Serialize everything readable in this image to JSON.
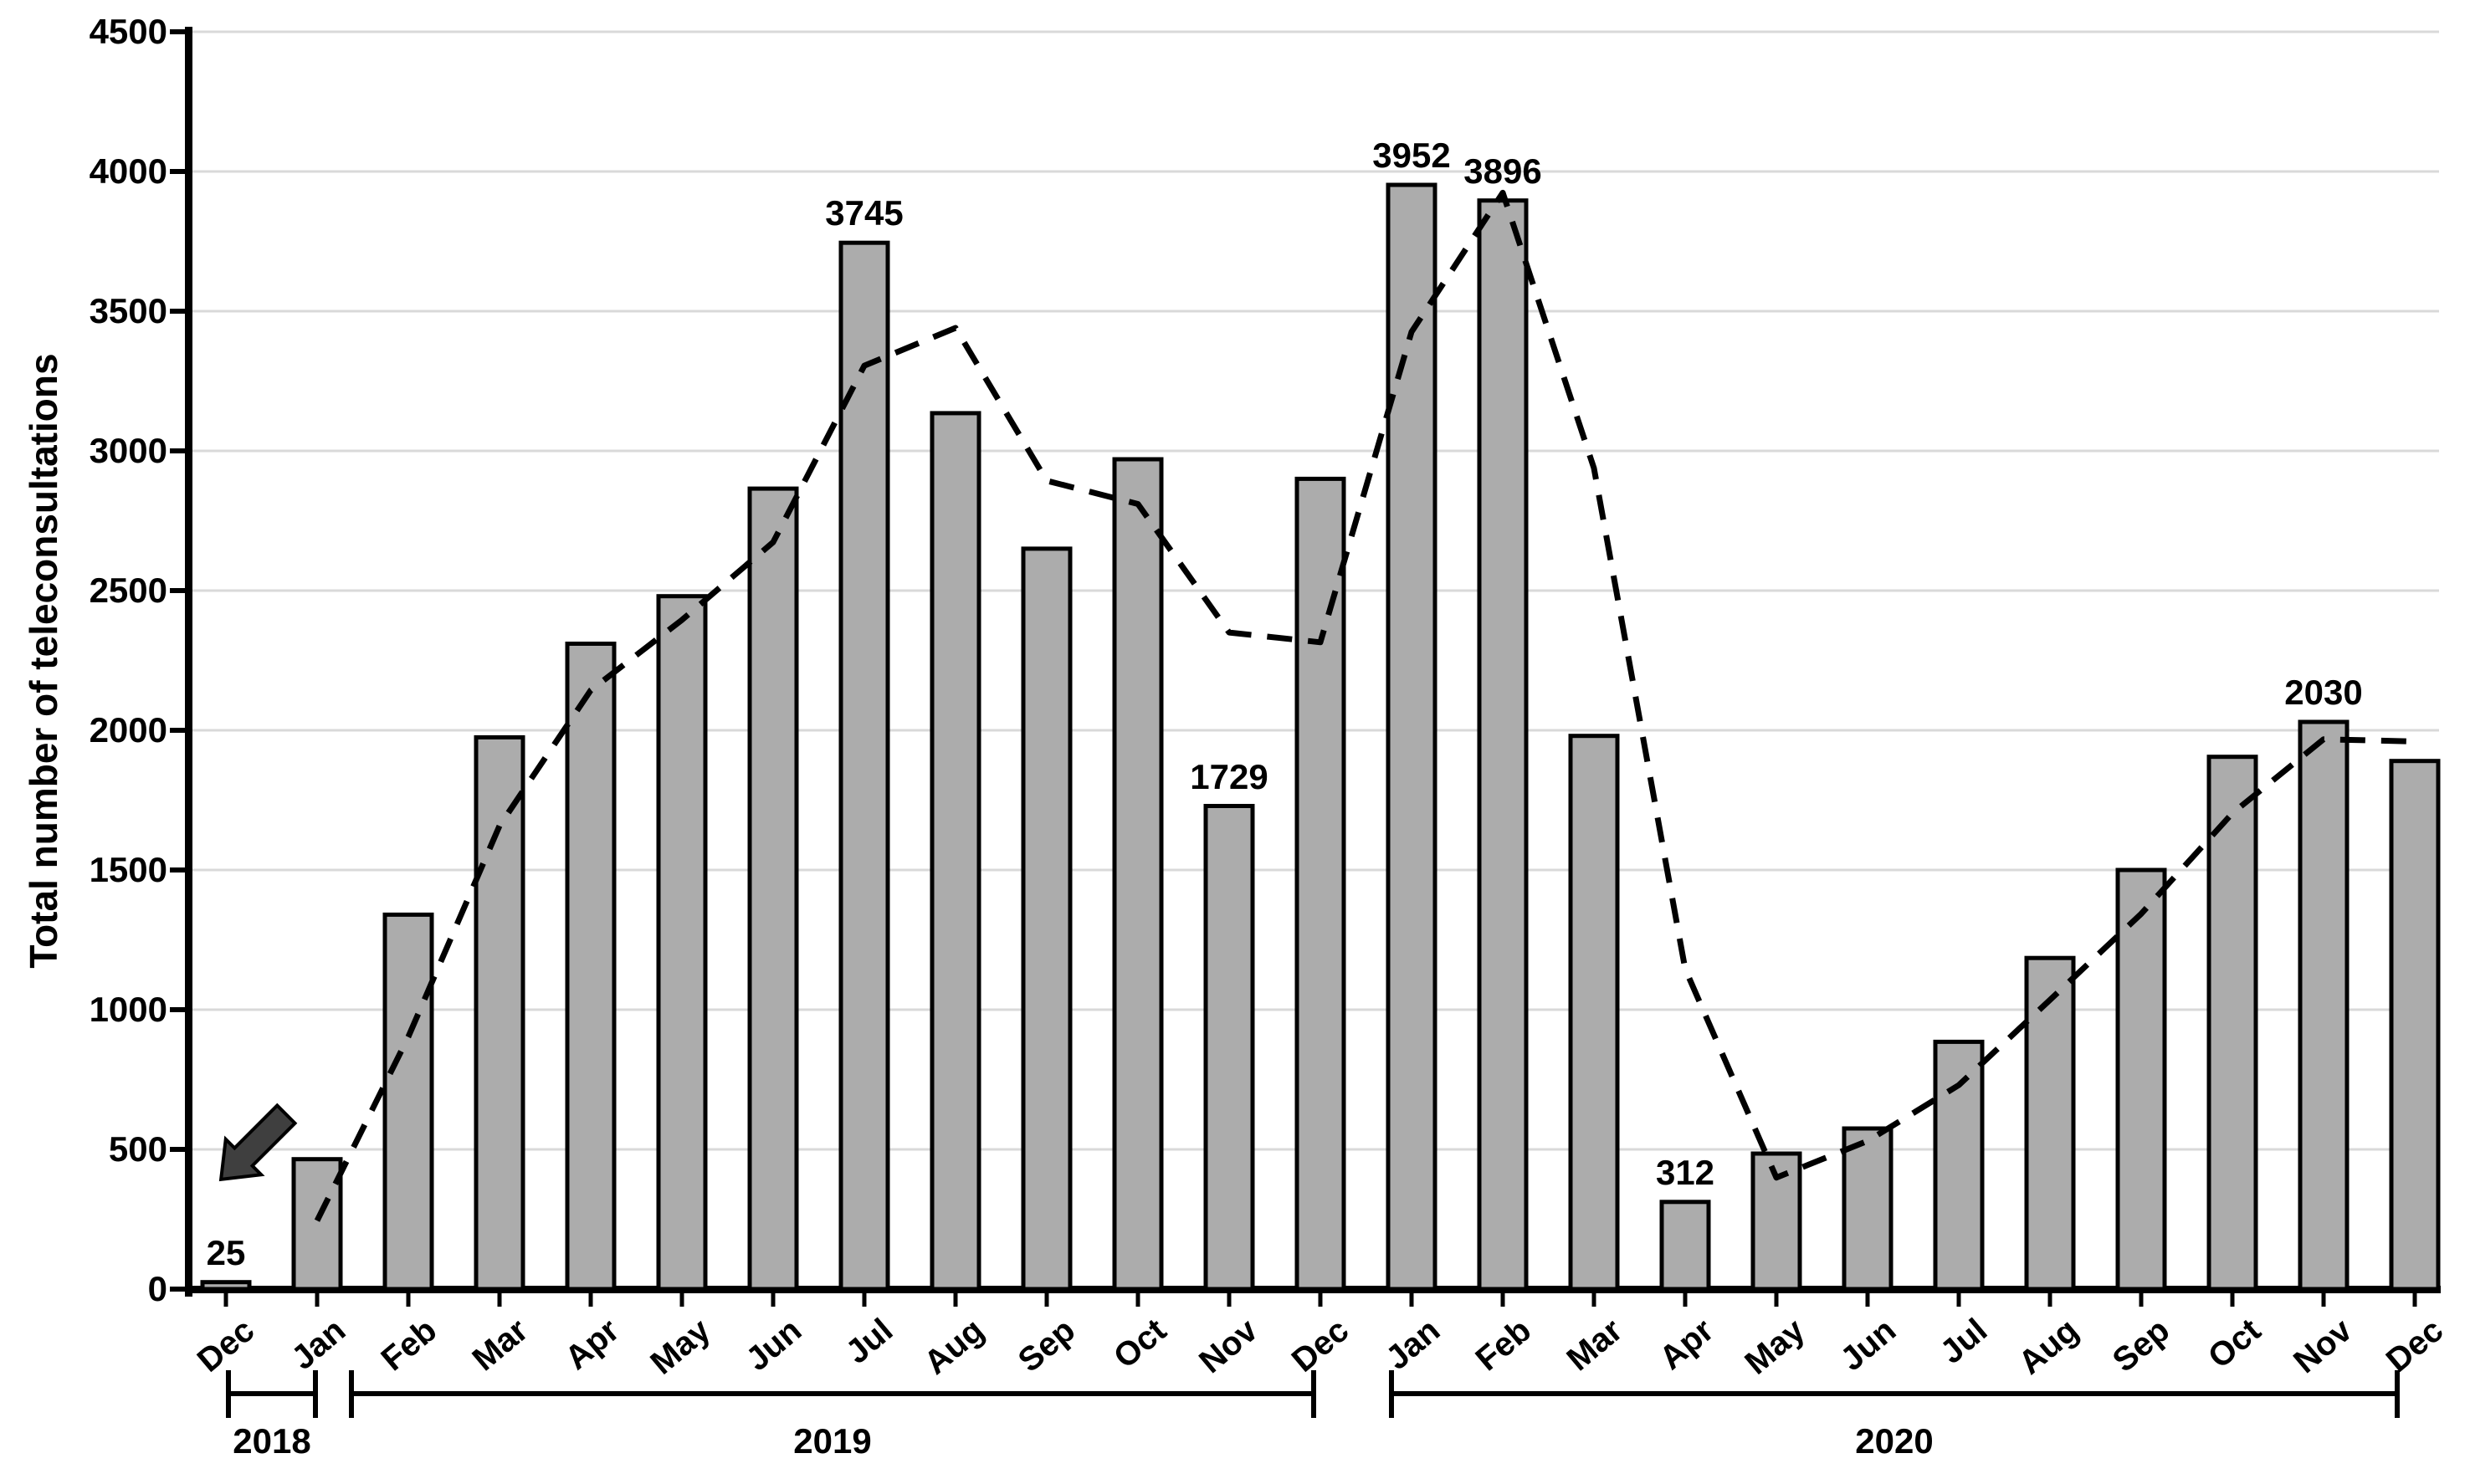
{
  "chart_data": {
    "type": "bar",
    "title": "",
    "xlabel": "",
    "ylabel": "Total number of teleconsultations",
    "ylim": [
      0,
      4500
    ],
    "y_tick_step": 500,
    "y_tick_labels": [
      "0",
      "500",
      "1000",
      "1500",
      "2000",
      "2500",
      "3000",
      "3500",
      "4000",
      "4500"
    ],
    "grid": true,
    "legend": false,
    "categories": [
      {
        "label": "Dec",
        "year": "2018"
      },
      {
        "label": "Jan",
        "year": "2019"
      },
      {
        "label": "Feb",
        "year": "2019"
      },
      {
        "label": "Mar",
        "year": "2019"
      },
      {
        "label": "Apr",
        "year": "2019"
      },
      {
        "label": "May",
        "year": "2019"
      },
      {
        "label": "Jun",
        "year": "2019"
      },
      {
        "label": "Jul",
        "year": "2019"
      },
      {
        "label": "Aug",
        "year": "2019"
      },
      {
        "label": "Sep",
        "year": "2019"
      },
      {
        "label": "Oct",
        "year": "2019"
      },
      {
        "label": "Nov",
        "year": "2019"
      },
      {
        "label": "Dec",
        "year": "2019"
      },
      {
        "label": "Jan",
        "year": "2020"
      },
      {
        "label": "Feb",
        "year": "2020"
      },
      {
        "label": "Mar",
        "year": "2020"
      },
      {
        "label": "Apr",
        "year": "2020"
      },
      {
        "label": "May",
        "year": "2020"
      },
      {
        "label": "Jun",
        "year": "2020"
      },
      {
        "label": "Jul",
        "year": "2020"
      },
      {
        "label": "Aug",
        "year": "2020"
      },
      {
        "label": "Sep",
        "year": "2020"
      },
      {
        "label": "Oct",
        "year": "2020"
      },
      {
        "label": "Nov",
        "year": "2020"
      },
      {
        "label": "Dec",
        "year": "2020"
      }
    ],
    "values": [
      25,
      465,
      1340,
      1975,
      2310,
      2480,
      2865,
      3745,
      3135,
      2650,
      2970,
      1729,
      2900,
      3952,
      3896,
      1980,
      312,
      485,
      575,
      885,
      1185,
      1500,
      1905,
      2030,
      1890
    ],
    "bar_labels": {
      "0": "25",
      "7": "3745",
      "11": "1729",
      "13": "3952",
      "14": "3896",
      "16": "312",
      "23": "2030"
    },
    "trend_line": {
      "style": "dashed",
      "start_index": 1,
      "values": [
        245,
        903,
        1658,
        2143,
        2395,
        2673,
        3305,
        3440,
        2893,
        2810,
        2350,
        2315,
        3426,
        3924,
        2938,
        1146,
        399,
        530,
        730,
        1035,
        1343,
        1703,
        1968,
        1960
      ]
    },
    "year_groups": [
      {
        "label": "2018",
        "start": 0,
        "end": 0
      },
      {
        "label": "2019",
        "start": 1,
        "end": 12
      },
      {
        "label": "2020",
        "start": 13,
        "end": 24
      }
    ],
    "annotations": [
      {
        "type": "arrow",
        "points_to": "Dec 2018 bar",
        "direction": "down-left"
      }
    ],
    "colors": {
      "bar_fill": "#ACACAC",
      "bar_stroke": "#000000",
      "gridline": "#D9D9D9",
      "axis": "#000000",
      "trend_line": "#000000",
      "arrow_fill": "#3F3F3F",
      "text": "#000000",
      "background": "#FFFFFF"
    }
  }
}
